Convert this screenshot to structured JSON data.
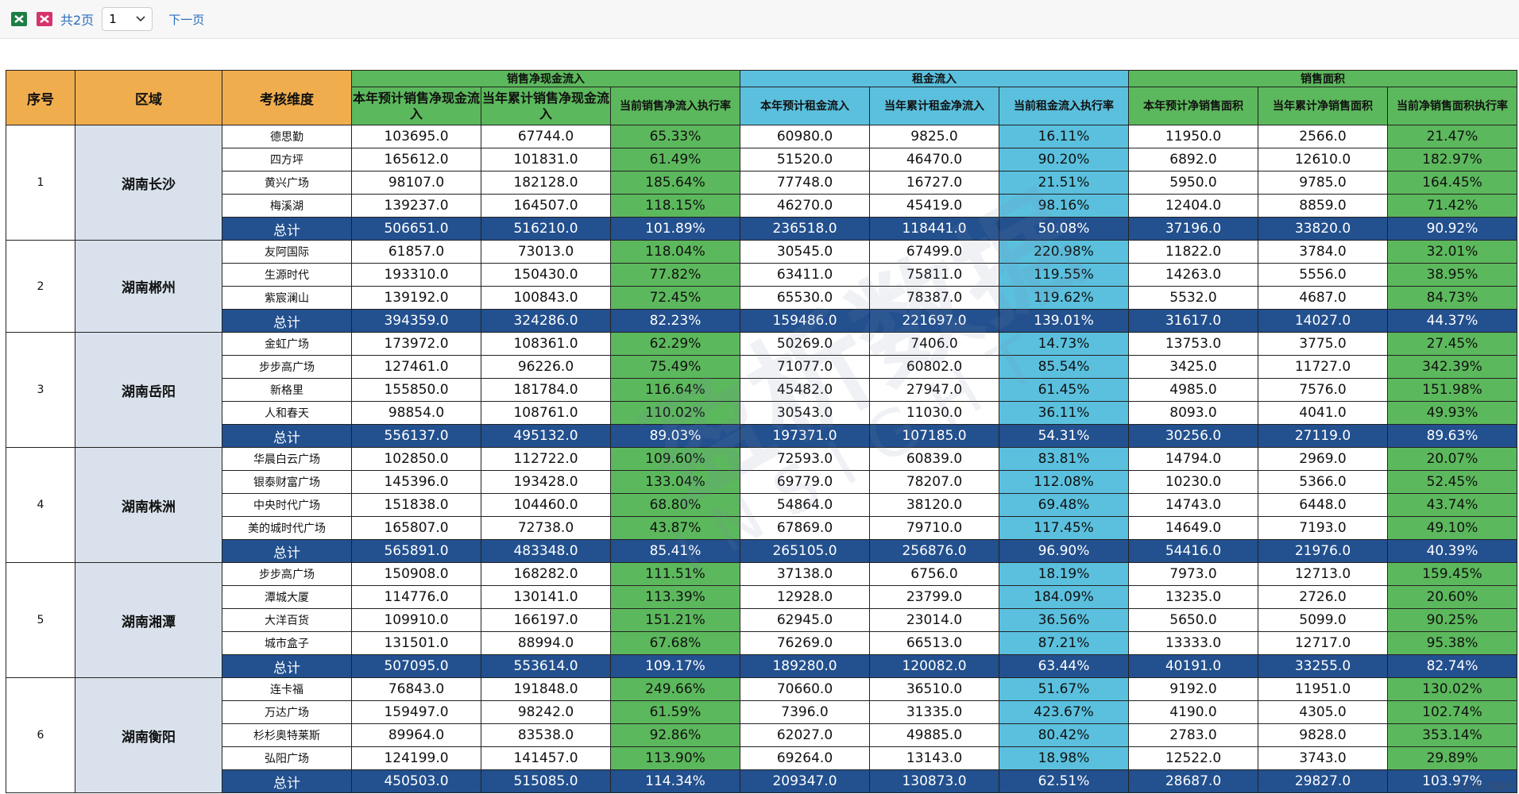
{
  "toolbar": {
    "pages": "共2页",
    "page_select": "1",
    "next": "下一页"
  },
  "table": {
    "headers": {
      "index": "序号",
      "region": "区域",
      "dimension": "考核维度",
      "groups": [
        {
          "title": "销售净现金流入",
          "columns": [
            "本年预计销售净现金流入",
            "当年累计销售净现金流入",
            "当前销售净流入执行率"
          ]
        },
        {
          "title": "租金流入",
          "columns": [
            "本年预计租金流入",
            "当年累计租金净流入",
            "当前租金流入执行率"
          ]
        },
        {
          "title": "销售面积",
          "columns": [
            "本年预计净销售面积",
            "当年累计净销售面积",
            "当前净销售面积执行率"
          ]
        }
      ]
    },
    "regions": [
      {
        "index": "1",
        "name": "湖南长沙",
        "rows": [
          {
            "dimension": "德思勤",
            "cells": [
              "103695.0",
              "67744.0",
              "65.33%",
              "60980.0",
              "9825.0",
              "16.11%",
              "11950.0",
              "2566.0",
              "21.47%"
            ]
          },
          {
            "dimension": "四方坪",
            "cells": [
              "165612.0",
              "101831.0",
              "61.49%",
              "51520.0",
              "46470.0",
              "90.20%",
              "6892.0",
              "12610.0",
              "182.97%"
            ]
          },
          {
            "dimension": "黄兴广场",
            "cells": [
              "98107.0",
              "182128.0",
              "185.64%",
              "77748.0",
              "16727.0",
              "21.51%",
              "5950.0",
              "9785.0",
              "164.45%"
            ]
          },
          {
            "dimension": "梅溪湖",
            "cells": [
              "139237.0",
              "164507.0",
              "118.15%",
              "46270.0",
              "45419.0",
              "98.16%",
              "12404.0",
              "8859.0",
              "71.42%"
            ]
          },
          {
            "dimension": "总计",
            "cells": [
              "506651.0",
              "516210.0",
              "101.89%",
              "236518.0",
              "118441.0",
              "50.08%",
              "37196.0",
              "33820.0",
              "90.92%"
            ]
          }
        ]
      },
      {
        "index": "2",
        "name": "湖南郴州",
        "rows": [
          {
            "dimension": "友阿国际",
            "cells": [
              "61857.0",
              "73013.0",
              "118.04%",
              "30545.0",
              "67499.0",
              "220.98%",
              "11822.0",
              "3784.0",
              "32.01%"
            ]
          },
          {
            "dimension": "生源时代",
            "cells": [
              "193310.0",
              "150430.0",
              "77.82%",
              "63411.0",
              "75811.0",
              "119.55%",
              "14263.0",
              "5556.0",
              "38.95%"
            ]
          },
          {
            "dimension": "紫宸澜山",
            "cells": [
              "139192.0",
              "100843.0",
              "72.45%",
              "65530.0",
              "78387.0",
              "119.62%",
              "5532.0",
              "4687.0",
              "84.73%"
            ]
          },
          {
            "dimension": "总计",
            "cells": [
              "394359.0",
              "324286.0",
              "82.23%",
              "159486.0",
              "221697.0",
              "139.01%",
              "31617.0",
              "14027.0",
              "44.37%"
            ]
          }
        ]
      },
      {
        "index": "3",
        "name": "湖南岳阳",
        "rows": [
          {
            "dimension": "金虹广场",
            "cells": [
              "173972.0",
              "108361.0",
              "62.29%",
              "50269.0",
              "7406.0",
              "14.73%",
              "13753.0",
              "3775.0",
              "27.45%"
            ]
          },
          {
            "dimension": "步步高广场",
            "cells": [
              "127461.0",
              "96226.0",
              "75.49%",
              "71077.0",
              "60802.0",
              "85.54%",
              "3425.0",
              "11727.0",
              "342.39%"
            ]
          },
          {
            "dimension": "新格里",
            "cells": [
              "155850.0",
              "181784.0",
              "116.64%",
              "45482.0",
              "27947.0",
              "61.45%",
              "4985.0",
              "7576.0",
              "151.98%"
            ]
          },
          {
            "dimension": "人和春天",
            "cells": [
              "98854.0",
              "108761.0",
              "110.02%",
              "30543.0",
              "11030.0",
              "36.11%",
              "8093.0",
              "4041.0",
              "49.93%"
            ]
          },
          {
            "dimension": "总计",
            "cells": [
              "556137.0",
              "495132.0",
              "89.03%",
              "197371.0",
              "107185.0",
              "54.31%",
              "30256.0",
              "27119.0",
              "89.63%"
            ]
          }
        ]
      },
      {
        "index": "4",
        "name": "湖南株洲",
        "rows": [
          {
            "dimension": "华晨白云广场",
            "cells": [
              "102850.0",
              "112722.0",
              "109.60%",
              "72593.0",
              "60839.0",
              "83.81%",
              "14794.0",
              "2969.0",
              "20.07%"
            ]
          },
          {
            "dimension": "银泰财富广场",
            "cells": [
              "145396.0",
              "193428.0",
              "133.04%",
              "69779.0",
              "78207.0",
              "112.08%",
              "10230.0",
              "5366.0",
              "52.45%"
            ]
          },
          {
            "dimension": "中央时代广场",
            "cells": [
              "151838.0",
              "104460.0",
              "68.80%",
              "54864.0",
              "38120.0",
              "69.48%",
              "14743.0",
              "6448.0",
              "43.74%"
            ]
          },
          {
            "dimension": "美的城时代广场",
            "cells": [
              "165807.0",
              "72738.0",
              "43.87%",
              "67869.0",
              "79710.0",
              "117.45%",
              "14649.0",
              "7193.0",
              "49.10%"
            ]
          },
          {
            "dimension": "总计",
            "cells": [
              "565891.0",
              "483348.0",
              "85.41%",
              "265105.0",
              "256876.0",
              "96.90%",
              "54416.0",
              "21976.0",
              "40.39%"
            ]
          }
        ]
      },
      {
        "index": "5",
        "name": "湖南湘潭",
        "rows": [
          {
            "dimension": "步步高广场",
            "cells": [
              "150908.0",
              "168282.0",
              "111.51%",
              "37138.0",
              "6756.0",
              "18.19%",
              "7973.0",
              "12713.0",
              "159.45%"
            ]
          },
          {
            "dimension": "潭城大厦",
            "cells": [
              "114776.0",
              "130141.0",
              "113.39%",
              "12928.0",
              "23799.0",
              "184.09%",
              "13235.0",
              "2726.0",
              "20.60%"
            ]
          },
          {
            "dimension": "大洋百货",
            "cells": [
              "109910.0",
              "166197.0",
              "151.21%",
              "62945.0",
              "23014.0",
              "36.56%",
              "5650.0",
              "5099.0",
              "90.25%"
            ]
          },
          {
            "dimension": "城市盒子",
            "cells": [
              "131501.0",
              "88994.0",
              "67.68%",
              "76269.0",
              "66513.0",
              "87.21%",
              "13333.0",
              "12717.0",
              "95.38%"
            ]
          },
          {
            "dimension": "总计",
            "cells": [
              "507095.0",
              "553614.0",
              "109.17%",
              "189280.0",
              "120082.0",
              "63.44%",
              "40191.0",
              "33255.0",
              "82.74%"
            ]
          }
        ]
      },
      {
        "index": "6",
        "name": "湖南衡阳",
        "rows": [
          {
            "dimension": "连卡福",
            "cells": [
              "76843.0",
              "191848.0",
              "249.66%",
              "70660.0",
              "36510.0",
              "51.67%",
              "9192.0",
              "11951.0",
              "130.02%"
            ]
          },
          {
            "dimension": "万达广场",
            "cells": [
              "159497.0",
              "98242.0",
              "61.59%",
              "7396.0",
              "31335.0",
              "423.67%",
              "4190.0",
              "4305.0",
              "102.74%"
            ]
          },
          {
            "dimension": "杉杉奥特莱斯",
            "cells": [
              "89964.0",
              "83538.0",
              "92.86%",
              "62027.0",
              "49885.0",
              "80.42%",
              "2783.0",
              "9828.0",
              "353.14%"
            ]
          },
          {
            "dimension": "弘阳广场",
            "cells": [
              "124199.0",
              "141457.0",
              "113.90%",
              "69264.0",
              "13143.0",
              "18.98%",
              "12522.0",
              "3743.0",
              "29.89%"
            ]
          },
          {
            "dimension": "总计",
            "cells": [
              "450503.0",
              "515085.0",
              "114.34%",
              "209347.0",
              "130873.0",
              "62.51%",
              "28687.0",
              "29827.0",
              "103.97%"
            ]
          }
        ]
      }
    ]
  },
  "watermark": {
    "text": "盈析数据",
    "subtext": "INSIGHT",
    "credit": "CSDN @盈析"
  }
}
